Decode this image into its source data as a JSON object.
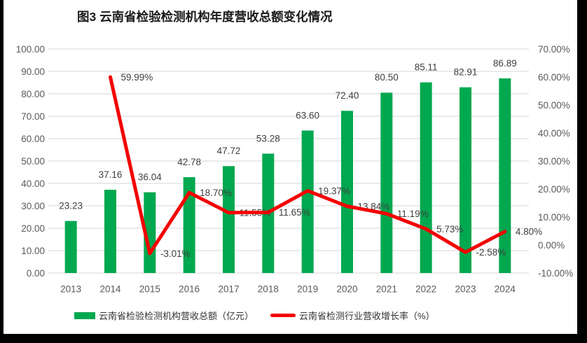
{
  "title": "图3  云南省检验检测机构年度营收总额变化情况",
  "colors": {
    "bar": "#00A84F",
    "line": "#F40000",
    "grid": "#DEDEDE",
    "tick_text": "#595959",
    "label_text": "#404040",
    "title_text": "#1a1a1a"
  },
  "legend": {
    "items": [
      {
        "label": "云南省检验检测机构营收总额（亿元）",
        "swatch": "bar"
      },
      {
        "label": "云南省检测行业营收增长率（%）",
        "swatch": "line"
      }
    ]
  },
  "chart_data": {
    "type": "combo-bar-line",
    "title": "图3  云南省检验检测机构年度营收总额变化情况",
    "categories": [
      "2013",
      "2014",
      "2015",
      "2016",
      "2017",
      "2018",
      "2019",
      "2020",
      "2021",
      "2022",
      "2023",
      "2024"
    ],
    "series": [
      {
        "name": "云南省检验检测机构营收总额（亿元）",
        "type": "bar",
        "axis": "left",
        "color": "#00A84F",
        "values": [
          23.23,
          37.16,
          36.04,
          42.78,
          47.72,
          53.28,
          63.6,
          72.4,
          80.5,
          85.11,
          82.91,
          86.89
        ],
        "data_labels": [
          "23.23",
          "37.16",
          "36.04",
          "42.78",
          "47.72",
          "53.28",
          "63.60",
          "72.40",
          "80.50",
          "85.11",
          "82.91",
          "86.89"
        ]
      },
      {
        "name": "云南省检测行业营收增长率（%）",
        "type": "line",
        "axis": "right",
        "color": "#F40000",
        "values": [
          null,
          59.99,
          -3.01,
          18.7,
          11.55,
          11.65,
          19.37,
          13.84,
          11.19,
          5.73,
          -2.58,
          4.8
        ],
        "data_labels": [
          "",
          "59.99%",
          "-3.01%",
          "18.70%",
          "11.55%",
          "11.65%",
          "19.37%",
          "13.84%",
          "11.19%",
          "5.73%",
          "-2.58%",
          "4.80%"
        ]
      }
    ],
    "left_axis": {
      "min": 0,
      "max": 100,
      "step": 10,
      "tick_labels": [
        "0.00",
        "10.00",
        "20.00",
        "30.00",
        "40.00",
        "50.00",
        "60.00",
        "70.00",
        "80.00",
        "90.00",
        "100.00"
      ]
    },
    "right_axis": {
      "min": -10,
      "max": 70,
      "step": 10,
      "tick_labels": [
        "-10.00%",
        "0.00%",
        "10.00%",
        "20.00%",
        "30.00%",
        "40.00%",
        "50.00%",
        "60.00%",
        "70.00%"
      ]
    },
    "grid": true,
    "legend_position": "bottom"
  }
}
